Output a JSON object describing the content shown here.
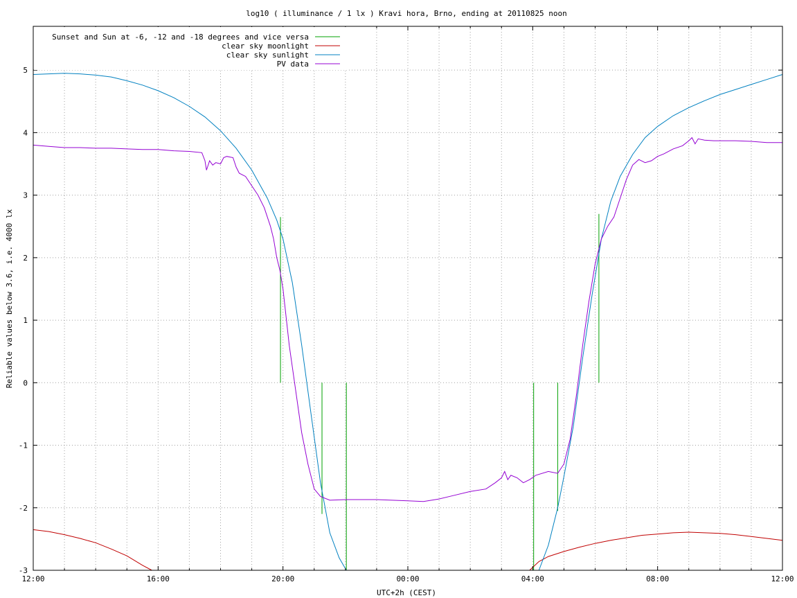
{
  "chart_data": {
    "type": "line",
    "title": "log10 ( illuminance / 1 lx ) Kravi hora, Brno, ending at 20110825 noon",
    "xlabel": "UTC+2h (CEST)",
    "ylabel": "Reliable values below 3.6, i.e. 4000 lx",
    "x_ticks": [
      "12:00",
      "16:00",
      "20:00",
      "00:00",
      "04:00",
      "08:00",
      "12:00"
    ],
    "x_tick_hours": [
      0,
      4,
      8,
      12,
      16,
      20,
      24
    ],
    "y_ticks": [
      "-3",
      "-2",
      "-1",
      "0",
      "1",
      "2",
      "3",
      "4",
      "5"
    ],
    "y_tick_values": [
      -3,
      -2,
      -1,
      0,
      1,
      2,
      3,
      4,
      5
    ],
    "xlim_hours": [
      0,
      24
    ],
    "ylim": [
      -3,
      5.7
    ],
    "grid": true,
    "legend_position": "top-left",
    "series": [
      {
        "name": "Sunset and Sun at -6, -12 and -18 degrees and vice versa",
        "color": "#00a000",
        "kind": "impulses",
        "bars": [
          {
            "x": 7.92,
            "y0": 0,
            "y1": 2.65
          },
          {
            "x": 9.25,
            "y0": 0,
            "y1": -2.1
          },
          {
            "x": 10.03,
            "y0": 0,
            "y1": -3
          },
          {
            "x": 16.03,
            "y0": 0,
            "y1": -3
          },
          {
            "x": 16.8,
            "y0": 0,
            "y1": -2.05
          },
          {
            "x": 18.12,
            "y0": 0,
            "y1": 2.7
          }
        ]
      },
      {
        "name": "clear sky moonlight",
        "color": "#c00000",
        "kind": "line",
        "segments": [
          [
            [
              0,
              -2.35
            ],
            [
              0.5,
              -2.38
            ],
            [
              1,
              -2.43
            ],
            [
              1.5,
              -2.49
            ],
            [
              2,
              -2.56
            ],
            [
              2.5,
              -2.66
            ],
            [
              3,
              -2.77
            ],
            [
              3.5,
              -2.92
            ],
            [
              3.8,
              -3.0
            ]
          ],
          [
            [
              15.9,
              -3.0
            ],
            [
              16.2,
              -2.86
            ],
            [
              16.5,
              -2.78
            ],
            [
              17,
              -2.7
            ],
            [
              17.5,
              -2.63
            ],
            [
              18,
              -2.57
            ],
            [
              18.5,
              -2.52
            ],
            [
              19,
              -2.48
            ],
            [
              19.5,
              -2.44
            ],
            [
              20,
              -2.42
            ],
            [
              20.5,
              -2.4
            ],
            [
              21,
              -2.39
            ],
            [
              21.5,
              -2.4
            ],
            [
              22,
              -2.41
            ],
            [
              22.5,
              -2.43
            ],
            [
              23,
              -2.46
            ],
            [
              23.5,
              -2.49
            ],
            [
              24,
              -2.52
            ]
          ]
        ]
      },
      {
        "name": "clear sky sunlight",
        "color": "#0080c0",
        "kind": "line",
        "segments": [
          [
            [
              0,
              4.93
            ],
            [
              0.5,
              4.94
            ],
            [
              1,
              4.95
            ],
            [
              1.5,
              4.94
            ],
            [
              2,
              4.92
            ],
            [
              2.5,
              4.89
            ],
            [
              3,
              4.83
            ],
            [
              3.5,
              4.76
            ],
            [
              4,
              4.67
            ],
            [
              4.5,
              4.56
            ],
            [
              5,
              4.42
            ],
            [
              5.5,
              4.25
            ],
            [
              6,
              4.03
            ],
            [
              6.5,
              3.75
            ],
            [
              7,
              3.4
            ],
            [
              7.5,
              2.95
            ],
            [
              7.8,
              2.6
            ],
            [
              8,
              2.3
            ],
            [
              8.3,
              1.6
            ],
            [
              8.6,
              0.6
            ],
            [
              8.9,
              -0.5
            ],
            [
              9.2,
              -1.6
            ],
            [
              9.5,
              -2.4
            ],
            [
              9.8,
              -2.8
            ],
            [
              10.03,
              -3.0
            ]
          ],
          [
            [
              16.2,
              -3.0
            ],
            [
              16.5,
              -2.6
            ],
            [
              16.8,
              -2.0
            ],
            [
              17.0,
              -1.5
            ],
            [
              17.3,
              -0.7
            ],
            [
              17.6,
              0.4
            ],
            [
              17.9,
              1.4
            ],
            [
              18.2,
              2.3
            ],
            [
              18.5,
              2.9
            ],
            [
              18.8,
              3.3
            ],
            [
              19.2,
              3.65
            ],
            [
              19.6,
              3.92
            ],
            [
              20,
              4.1
            ],
            [
              20.5,
              4.27
            ],
            [
              21,
              4.4
            ],
            [
              21.5,
              4.51
            ],
            [
              22,
              4.61
            ],
            [
              22.5,
              4.69
            ],
            [
              23,
              4.77
            ],
            [
              23.5,
              4.85
            ],
            [
              24,
              4.93
            ]
          ]
        ]
      },
      {
        "name": "PV data",
        "color": "#9400d3",
        "kind": "line",
        "segments": [
          [
            [
              0,
              3.8
            ],
            [
              0.5,
              3.78
            ],
            [
              1,
              3.76
            ],
            [
              1.5,
              3.76
            ],
            [
              2,
              3.75
            ],
            [
              2.5,
              3.75
            ],
            [
              3,
              3.74
            ],
            [
              3.5,
              3.73
            ],
            [
              4,
              3.73
            ],
            [
              4.5,
              3.71
            ],
            [
              5,
              3.7
            ],
            [
              5.4,
              3.68
            ],
            [
              5.5,
              3.55
            ],
            [
              5.55,
              3.4
            ],
            [
              5.65,
              3.55
            ],
            [
              5.75,
              3.48
            ],
            [
              5.85,
              3.52
            ],
            [
              6.0,
              3.5
            ],
            [
              6.1,
              3.6
            ],
            [
              6.2,
              3.62
            ],
            [
              6.4,
              3.6
            ],
            [
              6.5,
              3.45
            ],
            [
              6.6,
              3.35
            ],
            [
              6.8,
              3.3
            ],
            [
              7.0,
              3.15
            ],
            [
              7.2,
              3.0
            ],
            [
              7.4,
              2.8
            ],
            [
              7.6,
              2.5
            ],
            [
              7.7,
              2.3
            ],
            [
              7.8,
              2.0
            ],
            [
              7.9,
              1.8
            ],
            [
              8.0,
              1.5
            ],
            [
              8.2,
              0.6
            ],
            [
              8.4,
              -0.1
            ],
            [
              8.6,
              -0.8
            ],
            [
              8.8,
              -1.3
            ],
            [
              9.0,
              -1.7
            ],
            [
              9.2,
              -1.82
            ],
            [
              9.5,
              -1.88
            ],
            [
              10,
              -1.87
            ],
            [
              10.5,
              -1.87
            ],
            [
              11,
              -1.87
            ],
            [
              11.5,
              -1.88
            ],
            [
              12,
              -1.89
            ],
            [
              12.5,
              -1.9
            ],
            [
              13,
              -1.86
            ],
            [
              13.5,
              -1.8
            ],
            [
              14,
              -1.74
            ],
            [
              14.5,
              -1.7
            ],
            [
              14.8,
              -1.6
            ],
            [
              15.0,
              -1.52
            ],
            [
              15.1,
              -1.42
            ],
            [
              15.2,
              -1.55
            ],
            [
              15.3,
              -1.48
            ],
            [
              15.5,
              -1.52
            ],
            [
              15.7,
              -1.6
            ],
            [
              15.9,
              -1.55
            ],
            [
              16.1,
              -1.48
            ],
            [
              16.5,
              -1.42
            ],
            [
              16.8,
              -1.45
            ],
            [
              17.0,
              -1.3
            ],
            [
              17.2,
              -0.9
            ],
            [
              17.4,
              -0.2
            ],
            [
              17.6,
              0.6
            ],
            [
              17.8,
              1.3
            ],
            [
              18.0,
              1.9
            ],
            [
              18.2,
              2.3
            ],
            [
              18.4,
              2.5
            ],
            [
              18.6,
              2.65
            ],
            [
              18.8,
              2.95
            ],
            [
              19.0,
              3.25
            ],
            [
              19.2,
              3.48
            ],
            [
              19.4,
              3.57
            ],
            [
              19.6,
              3.52
            ],
            [
              19.8,
              3.55
            ],
            [
              20.0,
              3.62
            ],
            [
              20.2,
              3.66
            ],
            [
              20.5,
              3.74
            ],
            [
              20.8,
              3.79
            ],
            [
              21.0,
              3.87
            ],
            [
              21.1,
              3.92
            ],
            [
              21.2,
              3.82
            ],
            [
              21.3,
              3.9
            ],
            [
              21.5,
              3.88
            ],
            [
              21.8,
              3.87
            ],
            [
              22,
              3.87
            ],
            [
              22.5,
              3.87
            ],
            [
              23,
              3.86
            ],
            [
              23.5,
              3.84
            ],
            [
              24,
              3.84
            ]
          ]
        ]
      }
    ]
  }
}
